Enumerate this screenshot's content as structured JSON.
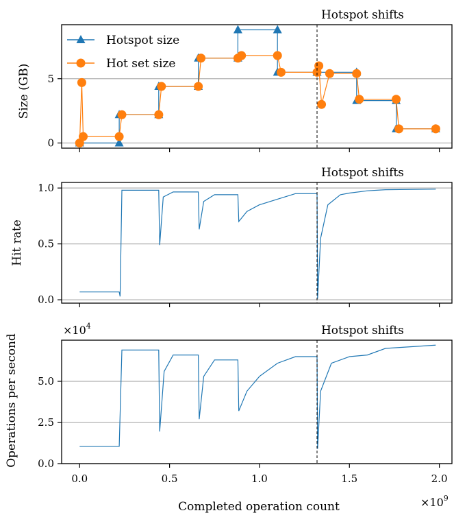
{
  "chart_data": [
    {
      "type": "line",
      "panel": "size",
      "ylabel": "Size (GB)",
      "xlabel": "",
      "xlim": [
        -0.1,
        2.07
      ],
      "ylim": [
        -0.4,
        9.2
      ],
      "yticks": [
        0,
        5
      ],
      "yticklabels": [
        "0",
        "5"
      ],
      "grid": "horizontal",
      "legend": "top-left",
      "annotation": {
        "x": 1.32,
        "label": "Hotspot shifts"
      },
      "series": [
        {
          "name": "Hotspot size",
          "color": "#1f77b4",
          "marker": "triangle",
          "x": [
            0.0,
            0.22,
            0.22,
            0.44,
            0.44,
            0.66,
            0.66,
            0.88,
            0.88,
            1.1,
            1.1,
            1.32,
            1.32,
            1.54,
            1.54,
            1.76,
            1.76,
            1.98
          ],
          "y": [
            0.0,
            0.0,
            2.2,
            2.2,
            4.4,
            4.4,
            6.6,
            6.6,
            8.8,
            8.8,
            5.5,
            5.5,
            5.5,
            5.5,
            3.3,
            3.3,
            1.1,
            1.1
          ]
        },
        {
          "name": "Hot set size",
          "color": "#ff7f0e",
          "marker": "circle",
          "x": [
            0.0,
            0.012,
            0.02,
            0.22,
            0.235,
            0.44,
            0.455,
            0.66,
            0.675,
            0.88,
            0.9,
            1.1,
            1.12,
            1.32,
            1.33,
            1.345,
            1.39,
            1.54,
            1.555,
            1.76,
            1.775,
            1.98
          ],
          "y": [
            0.0,
            4.7,
            0.5,
            0.5,
            2.2,
            2.2,
            4.4,
            4.4,
            6.6,
            6.6,
            6.8,
            6.8,
            5.5,
            5.5,
            6.0,
            3.0,
            5.4,
            5.4,
            3.4,
            3.4,
            1.1,
            1.1
          ]
        }
      ]
    },
    {
      "type": "line",
      "panel": "hit-rate",
      "ylabel": "Hit rate",
      "xlabel": "",
      "xlim": [
        -0.1,
        2.07
      ],
      "ylim": [
        -0.03,
        1.05
      ],
      "yticks": [
        0.0,
        0.5,
        1.0
      ],
      "yticklabels": [
        "0.0",
        "0.5",
        "1.0"
      ],
      "grid": "horizontal",
      "annotation": {
        "x": 1.32,
        "label": "Hotspot shifts"
      },
      "series": [
        {
          "color": "#1f77b4",
          "x": [
            0.0,
            0.22,
            0.225,
            0.235,
            0.44,
            0.445,
            0.465,
            0.52,
            0.66,
            0.665,
            0.69,
            0.75,
            0.88,
            0.885,
            0.93,
            1.0,
            1.1,
            1.2,
            1.32,
            1.323,
            1.34,
            1.38,
            1.45,
            1.5,
            1.6,
            1.7,
            1.98
          ],
          "y": [
            0.07,
            0.07,
            0.03,
            0.98,
            0.98,
            0.49,
            0.92,
            0.965,
            0.965,
            0.63,
            0.88,
            0.94,
            0.94,
            0.7,
            0.79,
            0.85,
            0.9,
            0.95,
            0.95,
            0.01,
            0.55,
            0.85,
            0.94,
            0.955,
            0.975,
            0.985,
            0.99
          ]
        }
      ]
    },
    {
      "type": "line",
      "panel": "throughput",
      "ylabel": "Operations per second",
      "xlabel": "Completed operation count",
      "xlim": [
        -0.1,
        2.07
      ],
      "ylim": [
        0.0,
        7.5
      ],
      "yticks": [
        0.0,
        2.5,
        5.0
      ],
      "yticklabels": [
        "0.0",
        "2.5",
        "5.0"
      ],
      "xticks": [
        0.0,
        0.5,
        1.0,
        1.5,
        2.0
      ],
      "xticklabels": [
        "0.0",
        "0.5",
        "1.0",
        "1.5",
        "2.0"
      ],
      "grid": "horizontal",
      "annotation": {
        "x": 1.32,
        "label": "Hotspot shifts"
      },
      "series": [
        {
          "color": "#1f77b4",
          "x": [
            0.0,
            0.22,
            0.235,
            0.44,
            0.445,
            0.47,
            0.52,
            0.66,
            0.665,
            0.69,
            0.75,
            0.88,
            0.885,
            0.93,
            1.0,
            1.1,
            1.2,
            1.32,
            1.323,
            1.34,
            1.4,
            1.5,
            1.6,
            1.7,
            1.98
          ],
          "y": [
            1.05,
            1.05,
            6.9,
            6.9,
            1.95,
            5.6,
            6.6,
            6.6,
            2.7,
            5.3,
            6.3,
            6.3,
            3.2,
            4.4,
            5.3,
            6.1,
            6.5,
            6.5,
            0.9,
            4.4,
            6.1,
            6.5,
            6.6,
            7.0,
            7.2
          ]
        }
      ]
    }
  ],
  "multipliers": {
    "x_axis": "×10",
    "x_exp": "9",
    "y_axis": "×10",
    "y_exp": "4"
  }
}
